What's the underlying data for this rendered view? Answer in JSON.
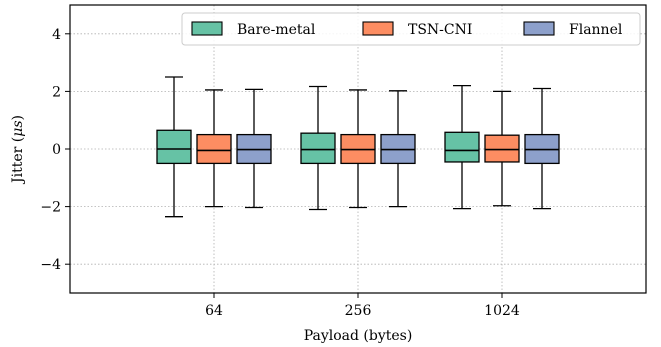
{
  "chart_data": {
    "type": "box",
    "xlabel": "Payload (bytes)",
    "ylabel_main": "Jitter (",
    "ylabel_unit": "μs",
    "ylabel_close": ")",
    "ylim": [
      -5,
      5
    ],
    "yticks": [
      -4,
      -2,
      0,
      2,
      4
    ],
    "ytick_labels": [
      "−4",
      "−2",
      "0",
      "2",
      "4"
    ],
    "categories": [
      "64",
      "256",
      "1024"
    ],
    "grid": true,
    "legend_position": "top-right",
    "series": [
      {
        "name": "Bare-metal",
        "color": "#66c2a5",
        "boxes": [
          {
            "whislo": -2.35,
            "q1": -0.5,
            "med": 0.0,
            "q3": 0.65,
            "whishi": 2.5
          },
          {
            "whislo": -2.1,
            "q1": -0.5,
            "med": -0.02,
            "q3": 0.55,
            "whishi": 2.17
          },
          {
            "whislo": -2.07,
            "q1": -0.45,
            "med": -0.05,
            "q3": 0.58,
            "whishi": 2.2
          }
        ]
      },
      {
        "name": "TSN-CNI",
        "color": "#fc8d62",
        "boxes": [
          {
            "whislo": -2.0,
            "q1": -0.5,
            "med": -0.05,
            "q3": 0.5,
            "whishi": 2.05
          },
          {
            "whislo": -2.03,
            "q1": -0.5,
            "med": -0.02,
            "q3": 0.5,
            "whishi": 2.05
          },
          {
            "whislo": -1.97,
            "q1": -0.45,
            "med": -0.02,
            "q3": 0.48,
            "whishi": 2.0
          }
        ]
      },
      {
        "name": "Flannel",
        "color": "#8da0cb",
        "boxes": [
          {
            "whislo": -2.03,
            "q1": -0.5,
            "med": -0.02,
            "q3": 0.5,
            "whishi": 2.07
          },
          {
            "whislo": -2.0,
            "q1": -0.5,
            "med": -0.02,
            "q3": 0.5,
            "whishi": 2.02
          },
          {
            "whislo": -2.07,
            "q1": -0.5,
            "med": -0.02,
            "q3": 0.5,
            "whishi": 2.1
          }
        ]
      }
    ]
  }
}
